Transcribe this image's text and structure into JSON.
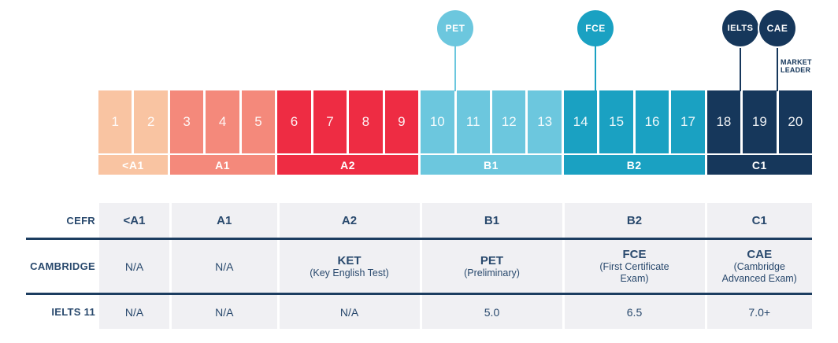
{
  "colors": {
    "peach": "#F9C4A2",
    "salmon": "#F4897B",
    "red": "#EE2C43",
    "light_blue": "#6CC7DE",
    "teal": "#1AA1C2",
    "navy": "#16375B",
    "table_text": "#29496D",
    "table_bg": "#F0F0F3",
    "line": "#1C3D60"
  },
  "markers": [
    {
      "id": "pet",
      "label": "PET",
      "color_key": "light_blue",
      "bordered": false
    },
    {
      "id": "fce",
      "label": "FCE",
      "color_key": "teal",
      "bordered": false
    },
    {
      "id": "ielts",
      "label": "IELTS",
      "color_key": "navy",
      "bordered": true
    },
    {
      "id": "cae",
      "label": "CAE",
      "color_key": "navy",
      "bordered": true
    }
  ],
  "market_leader": {
    "line1": "MARKET",
    "line2": "LEADER"
  },
  "scale": {
    "segments": [
      {
        "label": "<A1",
        "cells": [
          "1",
          "2"
        ],
        "color_key": "peach"
      },
      {
        "label": "A1",
        "cells": [
          "3",
          "4",
          "5"
        ],
        "color_key": "salmon"
      },
      {
        "label": "A2",
        "cells": [
          "6",
          "7",
          "8",
          "9"
        ],
        "color_key": "red"
      },
      {
        "label": "B1",
        "cells": [
          "10",
          "11",
          "12",
          "13"
        ],
        "color_key": "light_blue"
      },
      {
        "label": "B2",
        "cells": [
          "14",
          "15",
          "16",
          "17"
        ],
        "color_key": "teal"
      },
      {
        "label": "C1",
        "cells": [
          "18",
          "19",
          "20"
        ],
        "color_key": "navy"
      }
    ]
  },
  "table": {
    "rows": [
      {
        "header": "CEFR",
        "type": "levels",
        "cells": [
          {
            "main": "<A1"
          },
          {
            "main": "A1"
          },
          {
            "main": "A2"
          },
          {
            "main": "B1"
          },
          {
            "main": "B2"
          },
          {
            "main": "C1"
          }
        ]
      },
      {
        "header": "CAMBRIDGE",
        "type": "exams",
        "cells": [
          {
            "main": "N/A"
          },
          {
            "main": "N/A"
          },
          {
            "main": "KET",
            "sub": "(Key English Test)"
          },
          {
            "main": "PET",
            "sub": "(Preliminary)"
          },
          {
            "main": "FCE",
            "sub": "(First Certificate Exam)"
          },
          {
            "main": "CAE",
            "sub": "(Cambridge Advanced Exam)"
          }
        ]
      },
      {
        "header": "IELTS 11",
        "type": "scores",
        "cells": [
          {
            "main": "N/A"
          },
          {
            "main": "N/A"
          },
          {
            "main": "N/A"
          },
          {
            "main": "5.0"
          },
          {
            "main": "6.5"
          },
          {
            "main": "7.0+"
          }
        ]
      }
    ]
  },
  "chart_data": {
    "type": "table",
    "columns": [
      "<A1",
      "A1",
      "A2",
      "B1",
      "B2",
      "C1"
    ],
    "rows": [
      {
        "name": "CEFR",
        "values": [
          "<A1",
          "A1",
          "A2",
          "B1",
          "B2",
          "C1"
        ]
      },
      {
        "name": "CAMBRIDGE",
        "values": [
          "N/A",
          "N/A",
          "KET (Key English Test)",
          "PET (Preliminary)",
          "FCE (First Certificate Exam)",
          "CAE (Cambridge Advanced Exam)"
        ]
      },
      {
        "name": "IELTS 11",
        "values": [
          "N/A",
          "N/A",
          "N/A",
          "5.0",
          "6.5",
          "7.0+"
        ]
      }
    ],
    "scale_cells": {
      "<A1": [
        1,
        2
      ],
      "A1": [
        3,
        4,
        5
      ],
      "A2": [
        6,
        7,
        8,
        9
      ],
      "B1": [
        10,
        11,
        12,
        13
      ],
      "B2": [
        14,
        15,
        16,
        17
      ],
      "C1": [
        18,
        19,
        20
      ]
    },
    "exam_markers": [
      {
        "label": "PET",
        "over_level": "B1"
      },
      {
        "label": "FCE",
        "over_level": "B2"
      },
      {
        "label": "IELTS",
        "over_level": "C1"
      },
      {
        "label": "CAE",
        "over_level": "C1",
        "note": "MARKET LEADER"
      }
    ]
  }
}
